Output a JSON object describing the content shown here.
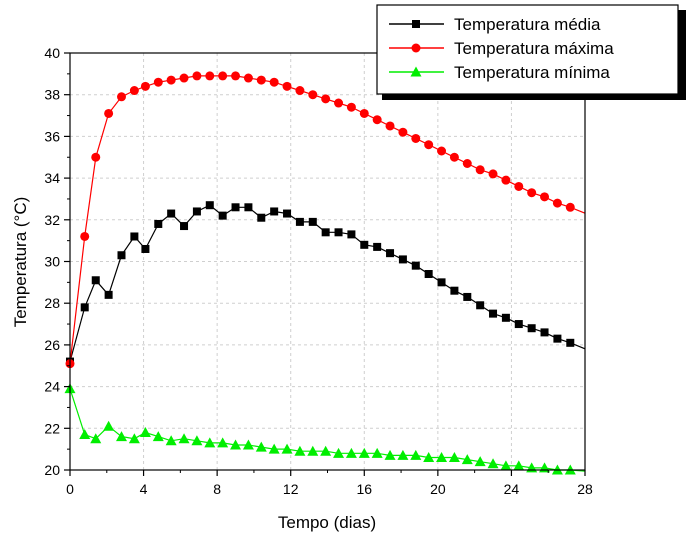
{
  "chart_data": {
    "type": "line",
    "title": "",
    "xlabel": "Tempo (dias)",
    "ylabel": "Temperatura (°C)",
    "xlim": [
      0,
      28
    ],
    "ylim": [
      20,
      40
    ],
    "xticks": [
      0,
      4,
      8,
      12,
      16,
      20,
      24,
      28
    ],
    "yticks": [
      20,
      22,
      24,
      26,
      28,
      30,
      32,
      34,
      36,
      38,
      40
    ],
    "grid": true,
    "legend_position": "top-right",
    "series": [
      {
        "name": "Temperatura média",
        "color": "#000000",
        "marker": "square",
        "x": [
          0,
          0.8,
          1.4,
          2.1,
          2.8,
          3.5,
          4.1,
          4.8,
          5.5,
          6.2,
          6.9,
          7.6,
          8.3,
          9.0,
          9.7,
          10.4,
          11.1,
          11.8,
          12.5,
          13.2,
          13.9,
          14.6,
          15.3,
          16.0,
          16.7,
          17.4,
          18.1,
          18.8,
          19.5,
          20.2,
          20.9,
          21.6,
          22.3,
          23.0,
          23.7,
          24.4,
          25.1,
          25.8,
          26.5,
          27.2
        ],
        "values": [
          25.2,
          27.8,
          29.1,
          28.4,
          30.3,
          31.2,
          30.6,
          31.8,
          32.3,
          31.7,
          32.4,
          32.7,
          32.2,
          32.6,
          32.6,
          32.1,
          32.4,
          32.3,
          31.9,
          31.9,
          31.4,
          31.4,
          31.3,
          30.8,
          30.7,
          30.4,
          30.1,
          29.8,
          29.4,
          29.0,
          28.6,
          28.3,
          27.9,
          27.5,
          27.3,
          27.0,
          26.8,
          26.6,
          26.3,
          26.1
        ]
      },
      {
        "name": "Temperatura máxima",
        "color": "#ff0000",
        "marker": "circle",
        "x": [
          0,
          0.8,
          1.4,
          2.1,
          2.8,
          3.5,
          4.1,
          4.8,
          5.5,
          6.2,
          6.9,
          7.6,
          8.3,
          9.0,
          9.7,
          10.4,
          11.1,
          11.8,
          12.5,
          13.2,
          13.9,
          14.6,
          15.3,
          16.0,
          16.7,
          17.4,
          18.1,
          18.8,
          19.5,
          20.2,
          20.9,
          21.6,
          22.3,
          23.0,
          23.7,
          24.4,
          25.1,
          25.8,
          26.5,
          27.2
        ],
        "values": [
          25.1,
          31.2,
          35.0,
          37.1,
          37.9,
          38.2,
          38.4,
          38.6,
          38.7,
          38.8,
          38.9,
          38.9,
          38.9,
          38.9,
          38.8,
          38.7,
          38.6,
          38.4,
          38.2,
          38.0,
          37.8,
          37.6,
          37.4,
          37.1,
          36.8,
          36.5,
          36.2,
          35.9,
          35.6,
          35.3,
          35.0,
          34.7,
          34.4,
          34.2,
          33.9,
          33.6,
          33.3,
          33.1,
          32.8,
          32.6
        ]
      },
      {
        "name": "Temperatura mínima",
        "color": "#00ee00",
        "marker": "triangle",
        "x": [
          0,
          0.8,
          1.4,
          2.1,
          2.8,
          3.5,
          4.1,
          4.8,
          5.5,
          6.2,
          6.9,
          7.6,
          8.3,
          9.0,
          9.7,
          10.4,
          11.1,
          11.8,
          12.5,
          13.2,
          13.9,
          14.6,
          15.3,
          16.0,
          16.7,
          17.4,
          18.1,
          18.8,
          19.5,
          20.2,
          20.9,
          21.6,
          22.3,
          23.0,
          23.7,
          24.4,
          25.1,
          25.8,
          26.5,
          27.2
        ],
        "values": [
          23.9,
          21.7,
          21.5,
          22.1,
          21.6,
          21.5,
          21.8,
          21.6,
          21.4,
          21.5,
          21.4,
          21.3,
          21.3,
          21.2,
          21.2,
          21.1,
          21.0,
          21.0,
          20.9,
          20.9,
          20.9,
          20.8,
          20.8,
          20.8,
          20.8,
          20.7,
          20.7,
          20.7,
          20.6,
          20.6,
          20.6,
          20.5,
          20.4,
          20.3,
          20.2,
          20.2,
          20.1,
          20.1,
          20.0,
          20.0
        ]
      }
    ]
  }
}
